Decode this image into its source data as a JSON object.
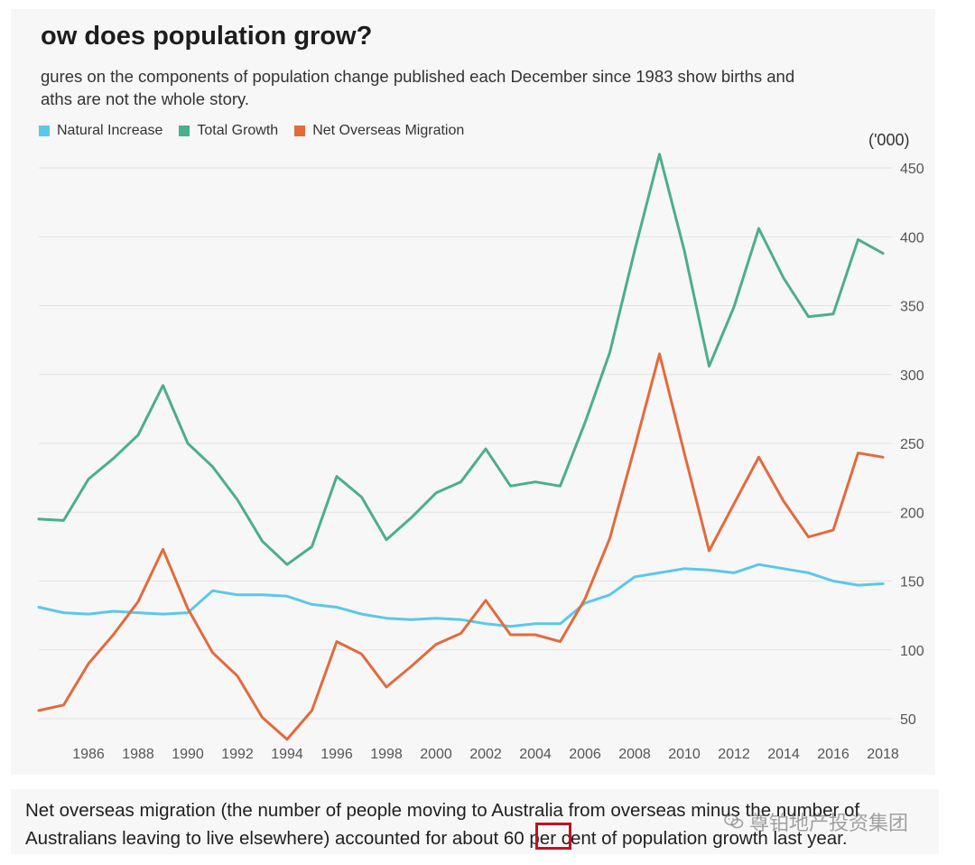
{
  "chart_data": {
    "type": "line",
    "title": "ow does population grow?",
    "subtitle": "gures on the components of population change published each December since 1983 show births and\naths are not the whole story.",
    "unit_label": "('000)",
    "xlim": [
      1984,
      2018
    ],
    "ylim": [
      30,
      460
    ],
    "x_ticks": [
      1986,
      1988,
      1990,
      1992,
      1994,
      1996,
      1998,
      2000,
      2002,
      2004,
      2006,
      2008,
      2010,
      2012,
      2014,
      2016,
      2018
    ],
    "y_ticks": [
      50,
      100,
      150,
      200,
      250,
      300,
      350,
      400,
      450
    ],
    "grid": true,
    "legend_position": "top-left",
    "x": [
      1984,
      1985,
      1986,
      1987,
      1988,
      1989,
      1990,
      1991,
      1992,
      1993,
      1994,
      1995,
      1996,
      1997,
      1998,
      1999,
      2000,
      2001,
      2002,
      2003,
      2004,
      2005,
      2006,
      2007,
      2008,
      2009,
      2010,
      2011,
      2012,
      2013,
      2014,
      2015,
      2016,
      2017,
      2018
    ],
    "series": [
      {
        "name": "Natural Increase",
        "color": "#5bc8e8",
        "values": [
          131,
          127,
          126,
          128,
          127,
          126,
          127,
          143,
          140,
          140,
          139,
          133,
          131,
          126,
          123,
          122,
          123,
          122,
          119,
          117,
          119,
          119,
          134,
          140,
          153,
          156,
          159,
          158,
          156,
          162,
          159,
          156,
          150,
          147,
          148
        ]
      },
      {
        "name": "Total Growth",
        "color": "#4cae8c",
        "values": [
          195,
          194,
          224,
          239,
          256,
          292,
          250,
          233,
          209,
          179,
          162,
          175,
          226,
          211,
          180,
          196,
          214,
          222,
          246,
          219,
          222,
          219,
          265,
          316,
          390,
          460,
          390,
          306,
          349,
          406,
          370,
          342,
          344,
          398,
          388
        ]
      },
      {
        "name": "Net Overseas Migration",
        "color": "#e36a3c",
        "values": [
          56,
          60,
          90,
          111,
          135,
          173,
          130,
          98,
          81,
          51,
          35,
          56,
          106,
          97,
          73,
          88,
          104,
          112,
          136,
          111,
          111,
          106,
          137,
          181,
          247,
          315,
          243,
          172,
          206,
          240,
          208,
          182,
          187,
          243,
          240
        ]
      }
    ]
  },
  "caption": {
    "line1": "Net overseas migration (the number of people moving to Australia from overseas minus the number of",
    "line2_before": "Australians leaving to live elsewhere) accounted for about ",
    "highlight": "60",
    "line2_after": " per cent of population growth last year."
  },
  "watermark": {
    "text": "尊铂地产投资集团",
    "icon": "wechat-icon"
  },
  "colors": {
    "panel_bg": "#f7f7f7",
    "grid": "#e2e2e2",
    "highlight_box": "#c1121f"
  }
}
